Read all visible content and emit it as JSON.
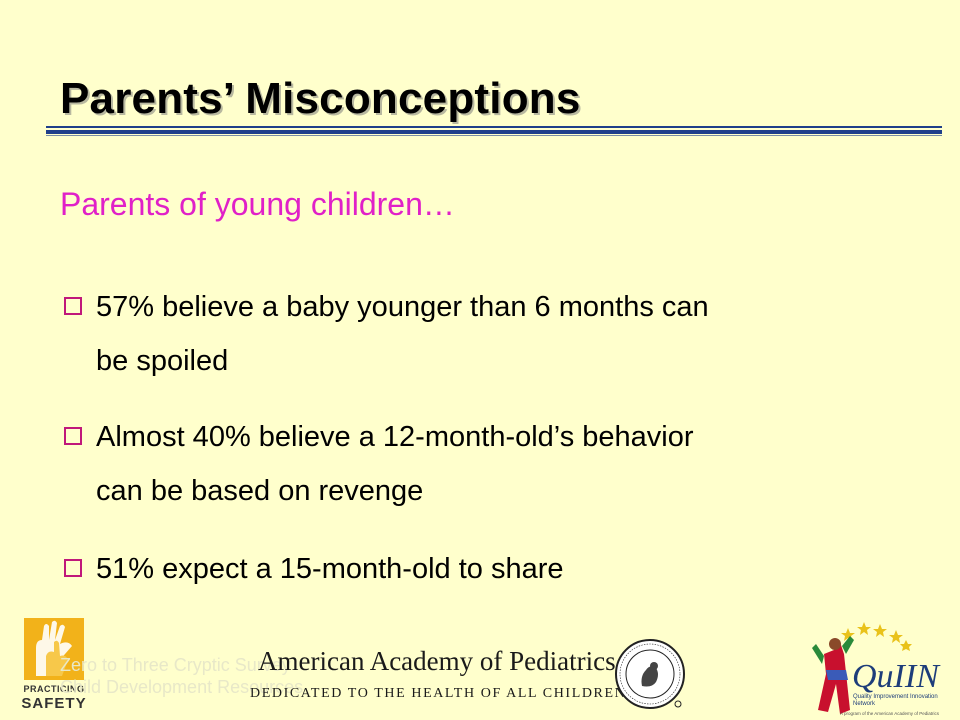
{
  "slide": {
    "title": "Parents’ Misconceptions",
    "subtitle": "Parents of young children…",
    "bullets": [
      {
        "line1": " 57% believe a baby younger than 6 months can",
        "line2": "be spoiled"
      },
      {
        "line1": "Almost 40% believe a 12-month-old’s behavior",
        "line2": "can be based on revenge"
      },
      {
        "line1": "51% expect a 15-month-old to share",
        "line2": ""
      }
    ]
  },
  "footer": {
    "practicing_safety": {
      "word1": "PRACTICING",
      "word2": "SAFETY"
    },
    "faint_text": {
      "line1": "Zero to Three Cryptic Survey",
      "line2": "Child Development Resources"
    },
    "aap": {
      "name": "American Academy of Pediatrics",
      "tagline": "DEDICATED TO THE HEALTH OF ALL CHILDREN™"
    },
    "quiin": {
      "name": "QuIIN",
      "subtitle": "Quality Improvement Innovation Network",
      "footnote": "A program of the American Academy of Pediatrics"
    }
  },
  "colors": {
    "background": "#ffffcc",
    "subtitle": "#e020c8",
    "bullet_box": "#c0187a",
    "rule": "#1f3f8a"
  },
  "icons": {
    "bullet": "hollow-square-icon",
    "practicing_safety_logo": "hands-logo-icon",
    "aap_seal": "aap-seal-icon",
    "quiin_logo": "child-star-icon"
  }
}
